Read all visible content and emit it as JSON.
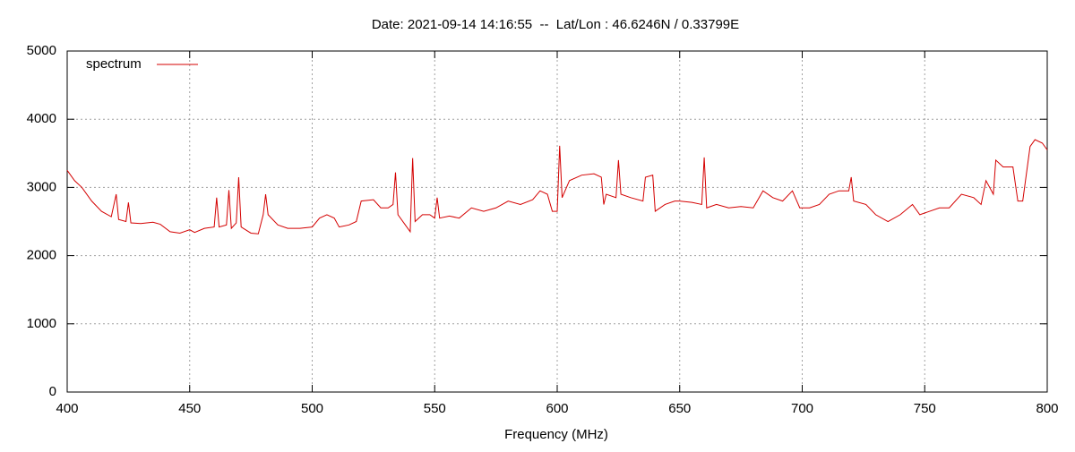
{
  "chart_data": {
    "type": "line",
    "title": "Date: 2021-09-14 14:16:55  --  Lat/Lon : 46.6246N / 0.33799E",
    "x_label": "Frequency (MHz)",
    "x": [
      400,
      403,
      406,
      410,
      414,
      418,
      420,
      421,
      424,
      425,
      426,
      430,
      435,
      438,
      442,
      446,
      450,
      452,
      456,
      460,
      461,
      462,
      465,
      466,
      467,
      469,
      470,
      471,
      475,
      478,
      480,
      481,
      482,
      486,
      490,
      495,
      500,
      503,
      506,
      509,
      511,
      515,
      518,
      520,
      525,
      528,
      531,
      533,
      534,
      535,
      538,
      540,
      541,
      542,
      545,
      548,
      550,
      551,
      552,
      556,
      560,
      565,
      570,
      575,
      580,
      585,
      590,
      593,
      596,
      598,
      600,
      601,
      602,
      605,
      610,
      615,
      618,
      619,
      620,
      624,
      625,
      626,
      630,
      635,
      636,
      639,
      640,
      644,
      648,
      650,
      655,
      659,
      660,
      661,
      665,
      670,
      675,
      680,
      684,
      688,
      692,
      696,
      699,
      703,
      707,
      711,
      715,
      719,
      720,
      721,
      726,
      730,
      735,
      740,
      745,
      748,
      752,
      756,
      760,
      765,
      770,
      773,
      775,
      778,
      779,
      782,
      786,
      788,
      790,
      793,
      795,
      798,
      800
    ],
    "series": [
      {
        "name": "spectrum",
        "color": "#d40000",
        "values": [
          3250,
          3100,
          3000,
          2800,
          2650,
          2570,
          2900,
          2530,
          2500,
          2780,
          2480,
          2470,
          2490,
          2460,
          2350,
          2330,
          2380,
          2340,
          2400,
          2420,
          2850,
          2420,
          2450,
          2960,
          2400,
          2480,
          3150,
          2420,
          2330,
          2320,
          2600,
          2900,
          2600,
          2450,
          2400,
          2400,
          2420,
          2550,
          2600,
          2550,
          2420,
          2450,
          2500,
          2800,
          2820,
          2700,
          2700,
          2750,
          3220,
          2600,
          2450,
          2350,
          3430,
          2500,
          2600,
          2600,
          2550,
          2850,
          2550,
          2580,
          2550,
          2700,
          2650,
          2700,
          2800,
          2750,
          2820,
          2950,
          2900,
          2650,
          2650,
          3610,
          2850,
          3100,
          3180,
          3200,
          3150,
          2750,
          2900,
          2850,
          3400,
          2900,
          2850,
          2800,
          3150,
          3180,
          2650,
          2750,
          2800,
          2800,
          2780,
          2750,
          3440,
          2700,
          2750,
          2700,
          2720,
          2700,
          2950,
          2850,
          2800,
          2950,
          2700,
          2700,
          2750,
          2900,
          2950,
          2950,
          3150,
          2800,
          2750,
          2600,
          2500,
          2600,
          2750,
          2600,
          2650,
          2700,
          2700,
          2900,
          2850,
          2750,
          3100,
          2900,
          3400,
          3300,
          3300,
          2800,
          2800,
          3600,
          3700,
          3650,
          3550
        ]
      }
    ],
    "xlim": [
      400,
      800
    ],
    "xticks": [
      400,
      450,
      500,
      550,
      600,
      650,
      700,
      750,
      800
    ],
    "ylim": [
      0,
      5000
    ],
    "yticks": [
      0,
      1000,
      2000,
      3000,
      4000,
      5000
    ],
    "grid": true,
    "legend": "top-left"
  }
}
